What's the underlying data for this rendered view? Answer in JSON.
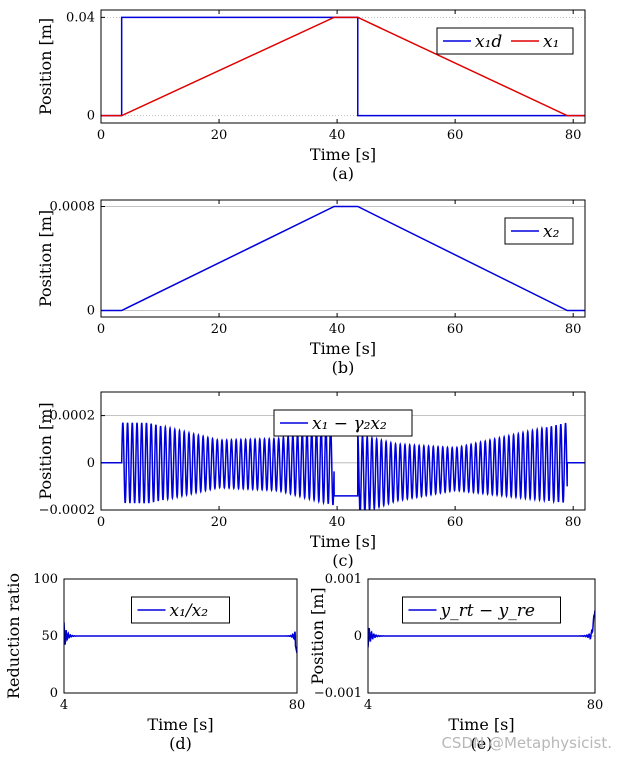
{
  "watermark": "CSDN @Metaphysicist.",
  "colors": {
    "blue": "#0000dd",
    "red": "#e00000",
    "grid": "#b0b0b0",
    "axis": "#000000"
  },
  "chart_data": [
    {
      "id": "a",
      "type": "line",
      "caption": "(a)",
      "xlabel": "Time [s]",
      "ylabel": "Position [m]",
      "xlim": [
        0,
        82
      ],
      "ylim": [
        -0.003,
        0.043
      ],
      "xticks": [
        0,
        20,
        40,
        60,
        80
      ],
      "xtick_labels": [
        "0",
        "20",
        "40",
        "60",
        "80"
      ],
      "yticks": [
        0,
        0.04
      ],
      "ytick_labels": [
        "0",
        "0.04"
      ],
      "legend": {
        "position": "top-right",
        "entries": [
          "x₁d",
          "x₁"
        ]
      },
      "series": [
        {
          "name": "x₁d",
          "color": "blue",
          "x": [
            0,
            3.5,
            3.5,
            43.5,
            43.5,
            82
          ],
          "y": [
            0,
            0,
            0.04,
            0.04,
            0,
            0
          ]
        },
        {
          "name": "x₁",
          "color": "red",
          "x": [
            0,
            3.5,
            39.5,
            43.5,
            79,
            82
          ],
          "y": [
            0,
            0,
            0.04,
            0.04,
            0,
            0
          ]
        }
      ]
    },
    {
      "id": "b",
      "type": "line",
      "caption": "(b)",
      "xlabel": "Time [s]",
      "ylabel": "Position [m]",
      "xlim": [
        0,
        82
      ],
      "ylim": [
        -5e-05,
        0.00085
      ],
      "xticks": [
        0,
        20,
        40,
        60,
        80
      ],
      "xtick_labels": [
        "0",
        "20",
        "40",
        "60",
        "80"
      ],
      "yticks": [
        0,
        0.0008
      ],
      "ytick_labels": [
        "0",
        "0.0008"
      ],
      "legend": {
        "position": "top-right",
        "entries": [
          "x₂"
        ]
      },
      "series": [
        {
          "name": "x₂",
          "color": "blue",
          "x": [
            0,
            3.5,
            39.5,
            43.5,
            79,
            82
          ],
          "y": [
            0,
            0,
            0.0008,
            0.0008,
            0,
            0
          ]
        }
      ]
    },
    {
      "id": "c",
      "type": "line",
      "caption": "(c)",
      "xlabel": "Time [s]",
      "ylabel": "Position [m]",
      "xlim": [
        0,
        82
      ],
      "ylim": [
        -0.0002,
        0.0003
      ],
      "xticks": [
        0,
        20,
        40,
        60,
        80
      ],
      "xtick_labels": [
        "0",
        "20",
        "40",
        "60",
        "80"
      ],
      "yticks": [
        -0.0002,
        0,
        0.0002
      ],
      "ytick_labels": [
        "−0.0002",
        "0",
        "0.0002"
      ],
      "legend": {
        "position": "top-center",
        "entries": [
          "x₁ − γ₂x₂"
        ]
      },
      "series": [
        {
          "name": "x₁ − γ₂x₂",
          "color": "blue",
          "oscillation_cycles_per_s": 1.25,
          "envelope_t": [
            3.5,
            8,
            20,
            30,
            39.5
          ],
          "envelope_amp": [
            0.00017,
            0.00017,
            0.0001,
            0.00011,
            0.00017
          ],
          "flat_segments": [
            {
              "t": [
                0,
                3.5
              ],
              "value": 0
            },
            {
              "t": [
                39.5,
                43.5
              ],
              "value": -0.00014
            },
            {
              "t": [
                79,
                82
              ],
              "value": 0
            }
          ],
          "envelope_t2": [
            43.5,
            50,
            60,
            72,
            79
          ],
          "envelope_amp2": [
            0.00017,
            0.00012,
            9e-05,
            0.00014,
            0.00017
          ]
        }
      ]
    },
    {
      "id": "d",
      "type": "line",
      "caption": "(d)",
      "xlabel": "Time [s]",
      "ylabel": "Reduction ratio",
      "xlim": [
        4,
        80
      ],
      "ylim": [
        0,
        100
      ],
      "xticks": [
        4,
        80
      ],
      "xtick_labels": [
        "4",
        "80"
      ],
      "yticks": [
        0,
        50,
        100
      ],
      "ytick_labels": [
        "0",
        "50",
        "100"
      ],
      "legend": {
        "position": "top-center",
        "entries": [
          "x₁/x₂"
        ]
      },
      "series": [
        {
          "name": "x₁/x₂",
          "color": "blue",
          "base": 50,
          "start_spike": 62,
          "end_spike": 60,
          "end_dip": 35
        }
      ]
    },
    {
      "id": "e",
      "type": "line",
      "caption": "(e)",
      "xlabel": "Time [s]",
      "ylabel": "Position [m]",
      "xlim": [
        4,
        80
      ],
      "ylim": [
        -0.001,
        0.001
      ],
      "xticks": [
        4,
        80
      ],
      "xtick_labels": [
        "4",
        "80"
      ],
      "yticks": [
        -0.001,
        0,
        0.001
      ],
      "ytick_labels": [
        "−0.001",
        "0",
        "0.001"
      ],
      "legend": {
        "position": "top-center",
        "entries": [
          "y_rt − y_re"
        ]
      },
      "series": [
        {
          "name": "y_rt − y_re",
          "color": "blue",
          "base": 0,
          "start_dip": -0.0002,
          "end_spike": 0.00045,
          "end_dip": -0.0002
        }
      ]
    }
  ]
}
